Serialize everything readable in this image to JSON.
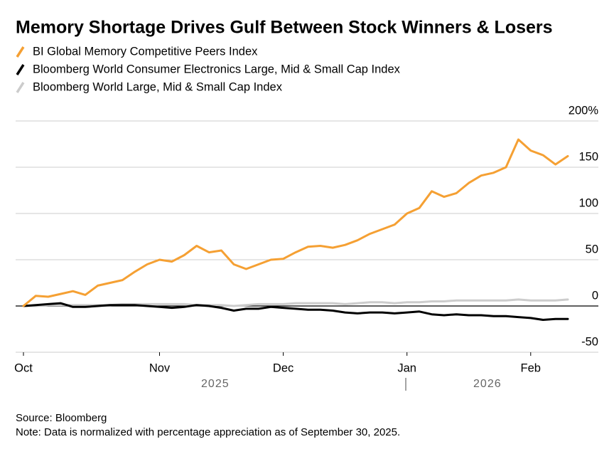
{
  "chart_data": {
    "type": "line",
    "title": "Memory Shortage Drives Gulf Between Stock Winners & Losers",
    "categories": [
      "Oct",
      null,
      null,
      null,
      null,
      null,
      null,
      null,
      null,
      null,
      null,
      "Nov",
      null,
      null,
      null,
      null,
      null,
      null,
      null,
      null,
      null,
      "Dec",
      null,
      null,
      null,
      null,
      null,
      null,
      null,
      null,
      null,
      "Jan",
      null,
      null,
      null,
      null,
      null,
      null,
      null,
      null,
      null,
      "Feb",
      null,
      null,
      null
    ],
    "x_group_labels": [
      "2025",
      "2026"
    ],
    "series": [
      {
        "name": "BI Global Memory Competitive Peers Index",
        "color": "#f5a033",
        "values": [
          0,
          11,
          10,
          13,
          16,
          12,
          22,
          25,
          28,
          37,
          45,
          50,
          48,
          55,
          65,
          58,
          60,
          45,
          40,
          45,
          50,
          51,
          58,
          64,
          65,
          63,
          66,
          71,
          78,
          83,
          88,
          100,
          106,
          124,
          118,
          122,
          133,
          141,
          144,
          150,
          180,
          168,
          163,
          153,
          162
        ]
      },
      {
        "name": "Bloomberg World Consumer Electronics Large, Mid & Small Cap Index",
        "color": "#000000",
        "values": [
          0,
          1,
          2,
          3,
          -1,
          -1,
          0,
          1,
          1,
          1,
          0,
          -1,
          -2,
          -1,
          1,
          0,
          -2,
          -5,
          -3,
          -3,
          -1,
          -2,
          -3,
          -4,
          -4,
          -5,
          -7,
          -8,
          -7,
          -7,
          -8,
          -7,
          -6,
          -9,
          -10,
          -9,
          -10,
          -10,
          -11,
          -11,
          -12,
          -13,
          -15,
          -14,
          -14
        ]
      },
      {
        "name": "Bloomberg World Large, Mid & Small Cap Index",
        "color": "#cccccc",
        "values": [
          0,
          0,
          1,
          1,
          1,
          1,
          1,
          1,
          2,
          2,
          2,
          2,
          2,
          2,
          1,
          1,
          1,
          0,
          1,
          2,
          2,
          2,
          3,
          3,
          3,
          3,
          2,
          3,
          4,
          4,
          3,
          4,
          4,
          5,
          5,
          6,
          6,
          6,
          6,
          6,
          7,
          6,
          6,
          6,
          7
        ]
      }
    ],
    "ylim": [
      -50,
      200
    ],
    "yticks": [
      {
        "value": 200,
        "label": "200%"
      },
      150,
      100,
      50,
      0,
      -50
    ],
    "grid": true,
    "source": "Source: Bloomberg",
    "note": "Note: Data is normalized with percentage appreciation as of September 30, 2025."
  }
}
